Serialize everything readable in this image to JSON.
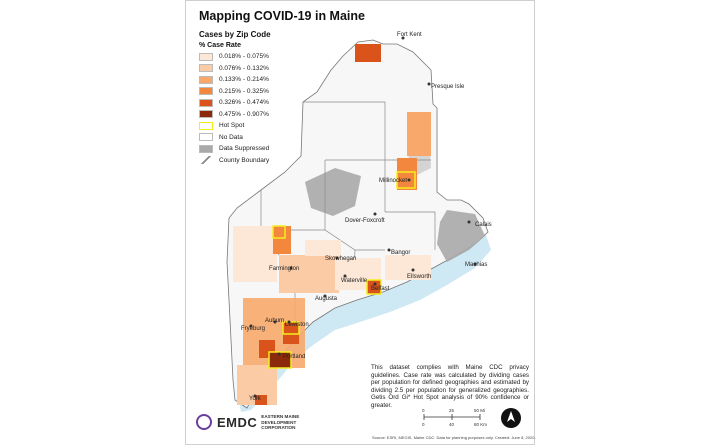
{
  "title": "Mapping COVID-19 in Maine",
  "legend": {
    "title": "Cases by Zip Code",
    "subtitle": "% Case Rate",
    "items": [
      {
        "label": "0.018% - 0.075%",
        "color": "#fde7d6"
      },
      {
        "label": "0.076% - 0.132%",
        "color": "#fbcba6"
      },
      {
        "label": "0.133% - 0.214%",
        "color": "#f8a86b"
      },
      {
        "label": "0.215% - 0.325%",
        "color": "#f2873d"
      },
      {
        "label": "0.326% - 0.474%",
        "color": "#d9531b"
      },
      {
        "label": "0.475% - 0.907%",
        "color": "#8c2a0c"
      },
      {
        "label": "Hot Spot",
        "color": "#f5ee1c"
      },
      {
        "label": "No Data",
        "color": "#ffffff"
      },
      {
        "label": "Data Suppressed",
        "color": "#a9a9a9"
      },
      {
        "label": "County Boundary",
        "color": "#888888"
      }
    ]
  },
  "places": [
    "Fort Kent",
    "Presque Isle",
    "Millinocket",
    "Dover-Foxcroft",
    "Calais",
    "Skowhegan",
    "Bangor",
    "Machias",
    "Farmington",
    "Ellsworth",
    "Waterville",
    "Belfast",
    "Augusta",
    "Auburn",
    "Lewiston",
    "Fryeburg",
    "Portland",
    "York"
  ],
  "note": "This dataset complies with Maine CDC privacy guidelines. Case rate was calculated by dividing cases per population for defined geographies and estimated by dividing 2.5 per population for generalized geographies. Getis Ord Gi* Hot Spot analysis of 90% confidence or greater.",
  "scale": {
    "ticks": [
      "0",
      "25",
      "50 Mi"
    ],
    "km": [
      "0",
      "40",
      "80 Km"
    ]
  },
  "logo": {
    "name": "EMDC",
    "subtitle": "EASTERN MAINE DEVELOPMENT CORPORATION"
  },
  "source": "Source: ESRI, MEGIS, Maine CDC. Data for planning purposes only. Created: June 8, 2020."
}
